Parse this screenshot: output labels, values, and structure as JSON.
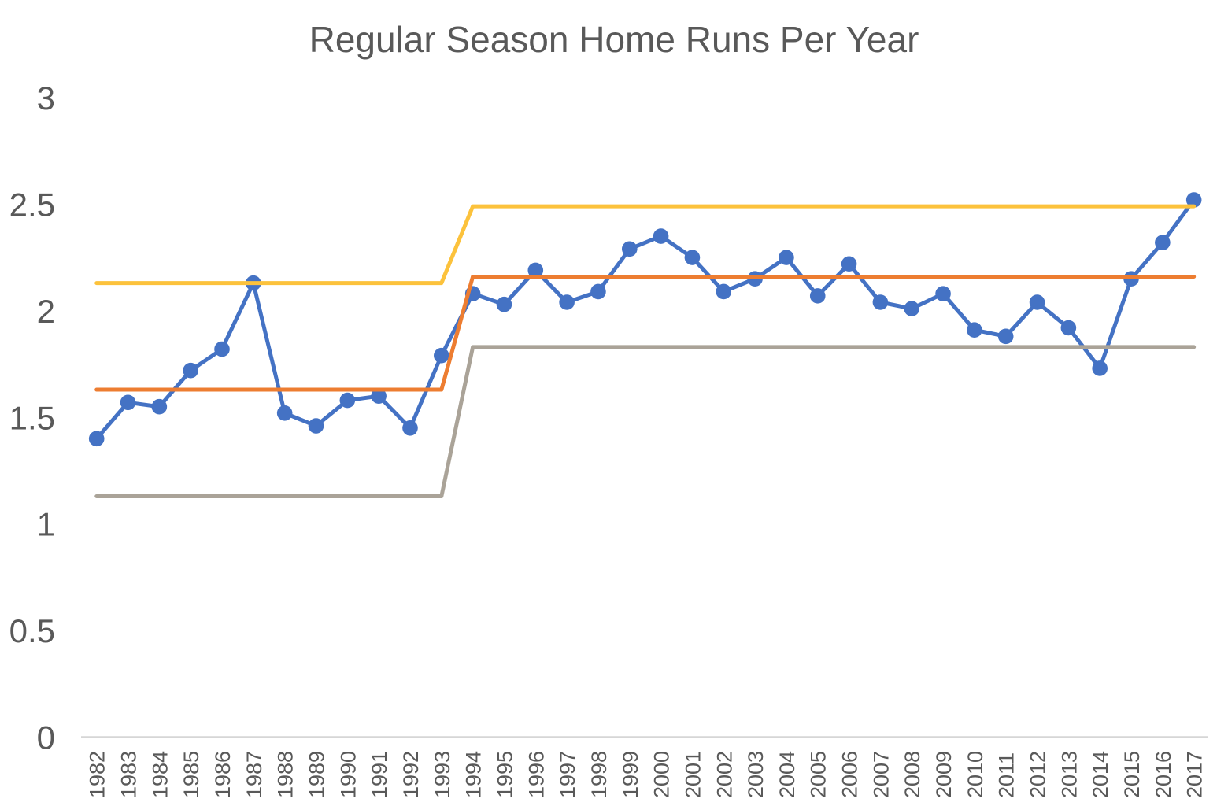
{
  "colors": {
    "background": "#FFFFFF",
    "title_text": "#595959",
    "axis_label_text": "#595959",
    "axis_line": "#D6D6D6",
    "series_blue": "#4472C4",
    "series_orange": "#ED7D31",
    "series_gray": "#AAA398",
    "series_yellow": "#FCC23C"
  },
  "chart_data": {
    "type": "line",
    "title": "Regular Season Home Runs Per Year",
    "xlabel": "",
    "ylabel": "",
    "ylim": [
      0,
      3
    ],
    "yticks": [
      "0",
      "0.5",
      "1",
      "1.5",
      "2",
      "2.5",
      "3"
    ],
    "ytick_values": [
      0,
      0.5,
      1,
      1.5,
      2,
      2.5,
      3
    ],
    "grid": false,
    "legend": false,
    "categories": [
      "1982",
      "1983",
      "1984",
      "1985",
      "1986",
      "1987",
      "1988",
      "1989",
      "1990",
      "1991",
      "1992",
      "1993",
      "1994",
      "1995",
      "1996",
      "1997",
      "1998",
      "1999",
      "2000",
      "2001",
      "2002",
      "2003",
      "2004",
      "2005",
      "2006",
      "2007",
      "2008",
      "2009",
      "2010",
      "2011",
      "2012",
      "2013",
      "2014",
      "2015",
      "2016",
      "2017"
    ],
    "series": [
      {
        "name": "home-runs-per-year",
        "color": "#4472C4",
        "marker": "circle",
        "values": [
          1.4,
          1.57,
          1.55,
          1.72,
          1.82,
          2.13,
          1.52,
          1.46,
          1.58,
          1.6,
          1.45,
          1.79,
          2.08,
          2.03,
          2.19,
          2.04,
          2.09,
          2.29,
          2.35,
          2.25,
          2.09,
          2.15,
          2.25,
          2.07,
          2.22,
          2.04,
          2.01,
          2.08,
          1.91,
          1.88,
          2.04,
          1.92,
          1.73,
          2.15,
          2.32,
          2.52
        ]
      },
      {
        "name": "center-line",
        "color": "#ED7D31",
        "marker": "none",
        "segments": [
          {
            "from": "1982",
            "to": "1993",
            "value": 1.63
          },
          {
            "from": "1994",
            "to": "2017",
            "value": 2.16
          }
        ]
      },
      {
        "name": "lower-limit-line",
        "color": "#AAA398",
        "marker": "none",
        "segments": [
          {
            "from": "1982",
            "to": "1993",
            "value": 1.13
          },
          {
            "from": "1994",
            "to": "2017",
            "value": 1.83
          }
        ]
      },
      {
        "name": "upper-limit-line",
        "color": "#FCC23C",
        "marker": "none",
        "segments": [
          {
            "from": "1982",
            "to": "1993",
            "value": 2.13
          },
          {
            "from": "1994",
            "to": "2017",
            "value": 2.49
          }
        ]
      }
    ]
  }
}
